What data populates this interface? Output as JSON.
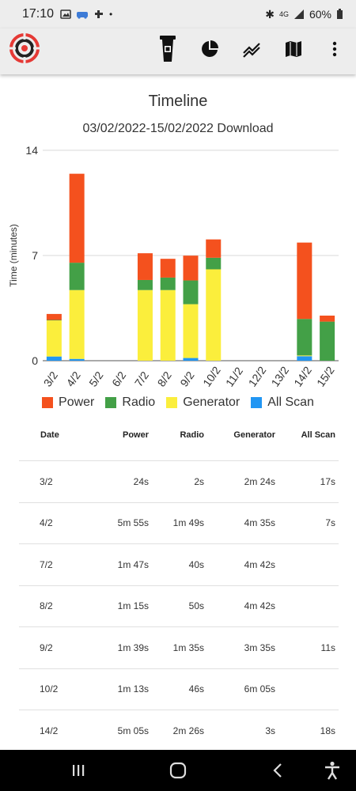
{
  "status_bar": {
    "time": "17:10",
    "bt": "✱",
    "network": "4G",
    "battery": "60%"
  },
  "app_bar": {
    "logo_icon": "target-logo-icon",
    "actions": [
      "device-icon",
      "pie-chart-icon",
      "line-chart-icon",
      "map-icon",
      "more-vert-icon"
    ]
  },
  "title": "Timeline",
  "subtitle": "03/02/2022-15/02/2022 Download",
  "colors": {
    "power": "#f4511e",
    "radio": "#43a047",
    "generator": "#fbee3c",
    "all_scan": "#2196f3"
  },
  "chart_data": {
    "type": "bar",
    "stacked": true,
    "categories": [
      "3/2",
      "4/2",
      "5/2",
      "6/2",
      "7/2",
      "8/2",
      "9/2",
      "10/2",
      "11/2",
      "12/2",
      "13/2",
      "14/2",
      "15/2"
    ],
    "ylabel": "Time (minutes)",
    "ylim": [
      0,
      14
    ],
    "yticks": [
      0,
      7,
      14
    ],
    "series": [
      {
        "name": "All Scan",
        "values": [
          0.28,
          0.12,
          0,
          0,
          0,
          0,
          0.18,
          0,
          0,
          0,
          0,
          0.3,
          0
        ]
      },
      {
        "name": "Generator",
        "values": [
          2.4,
          4.58,
          0,
          0,
          4.7,
          4.7,
          3.58,
          6.08,
          0,
          0,
          0,
          0.05,
          0
        ]
      },
      {
        "name": "Radio",
        "values": [
          0.03,
          1.82,
          0,
          0,
          0.67,
          0.83,
          1.58,
          0.77,
          0,
          0,
          0,
          2.43,
          2.6
        ]
      },
      {
        "name": "Power",
        "values": [
          0.4,
          5.92,
          0,
          0,
          1.78,
          1.25,
          1.65,
          1.22,
          0,
          0,
          0,
          5.08,
          0.4
        ]
      }
    ],
    "legend_position": "bottom"
  },
  "legend": [
    "Power",
    "Radio",
    "Generator",
    "All Scan"
  ],
  "table": {
    "headers": [
      "Date",
      "Power",
      "Radio",
      "Generator",
      "All Scan"
    ],
    "rows": [
      [
        "3/2",
        "24s",
        "2s",
        "2m 24s",
        "17s"
      ],
      [
        "4/2",
        "5m 55s",
        "1m 49s",
        "4m 35s",
        "7s"
      ],
      [
        "7/2",
        "1m 47s",
        "40s",
        "4m 42s",
        ""
      ],
      [
        "8/2",
        "1m 15s",
        "50s",
        "4m 42s",
        ""
      ],
      [
        "9/2",
        "1m 39s",
        "1m 35s",
        "3m 35s",
        "11s"
      ],
      [
        "10/2",
        "1m 13s",
        "46s",
        "6m 05s",
        ""
      ],
      [
        "14/2",
        "5m 05s",
        "2m 26s",
        "3s",
        "18s"
      ]
    ]
  }
}
